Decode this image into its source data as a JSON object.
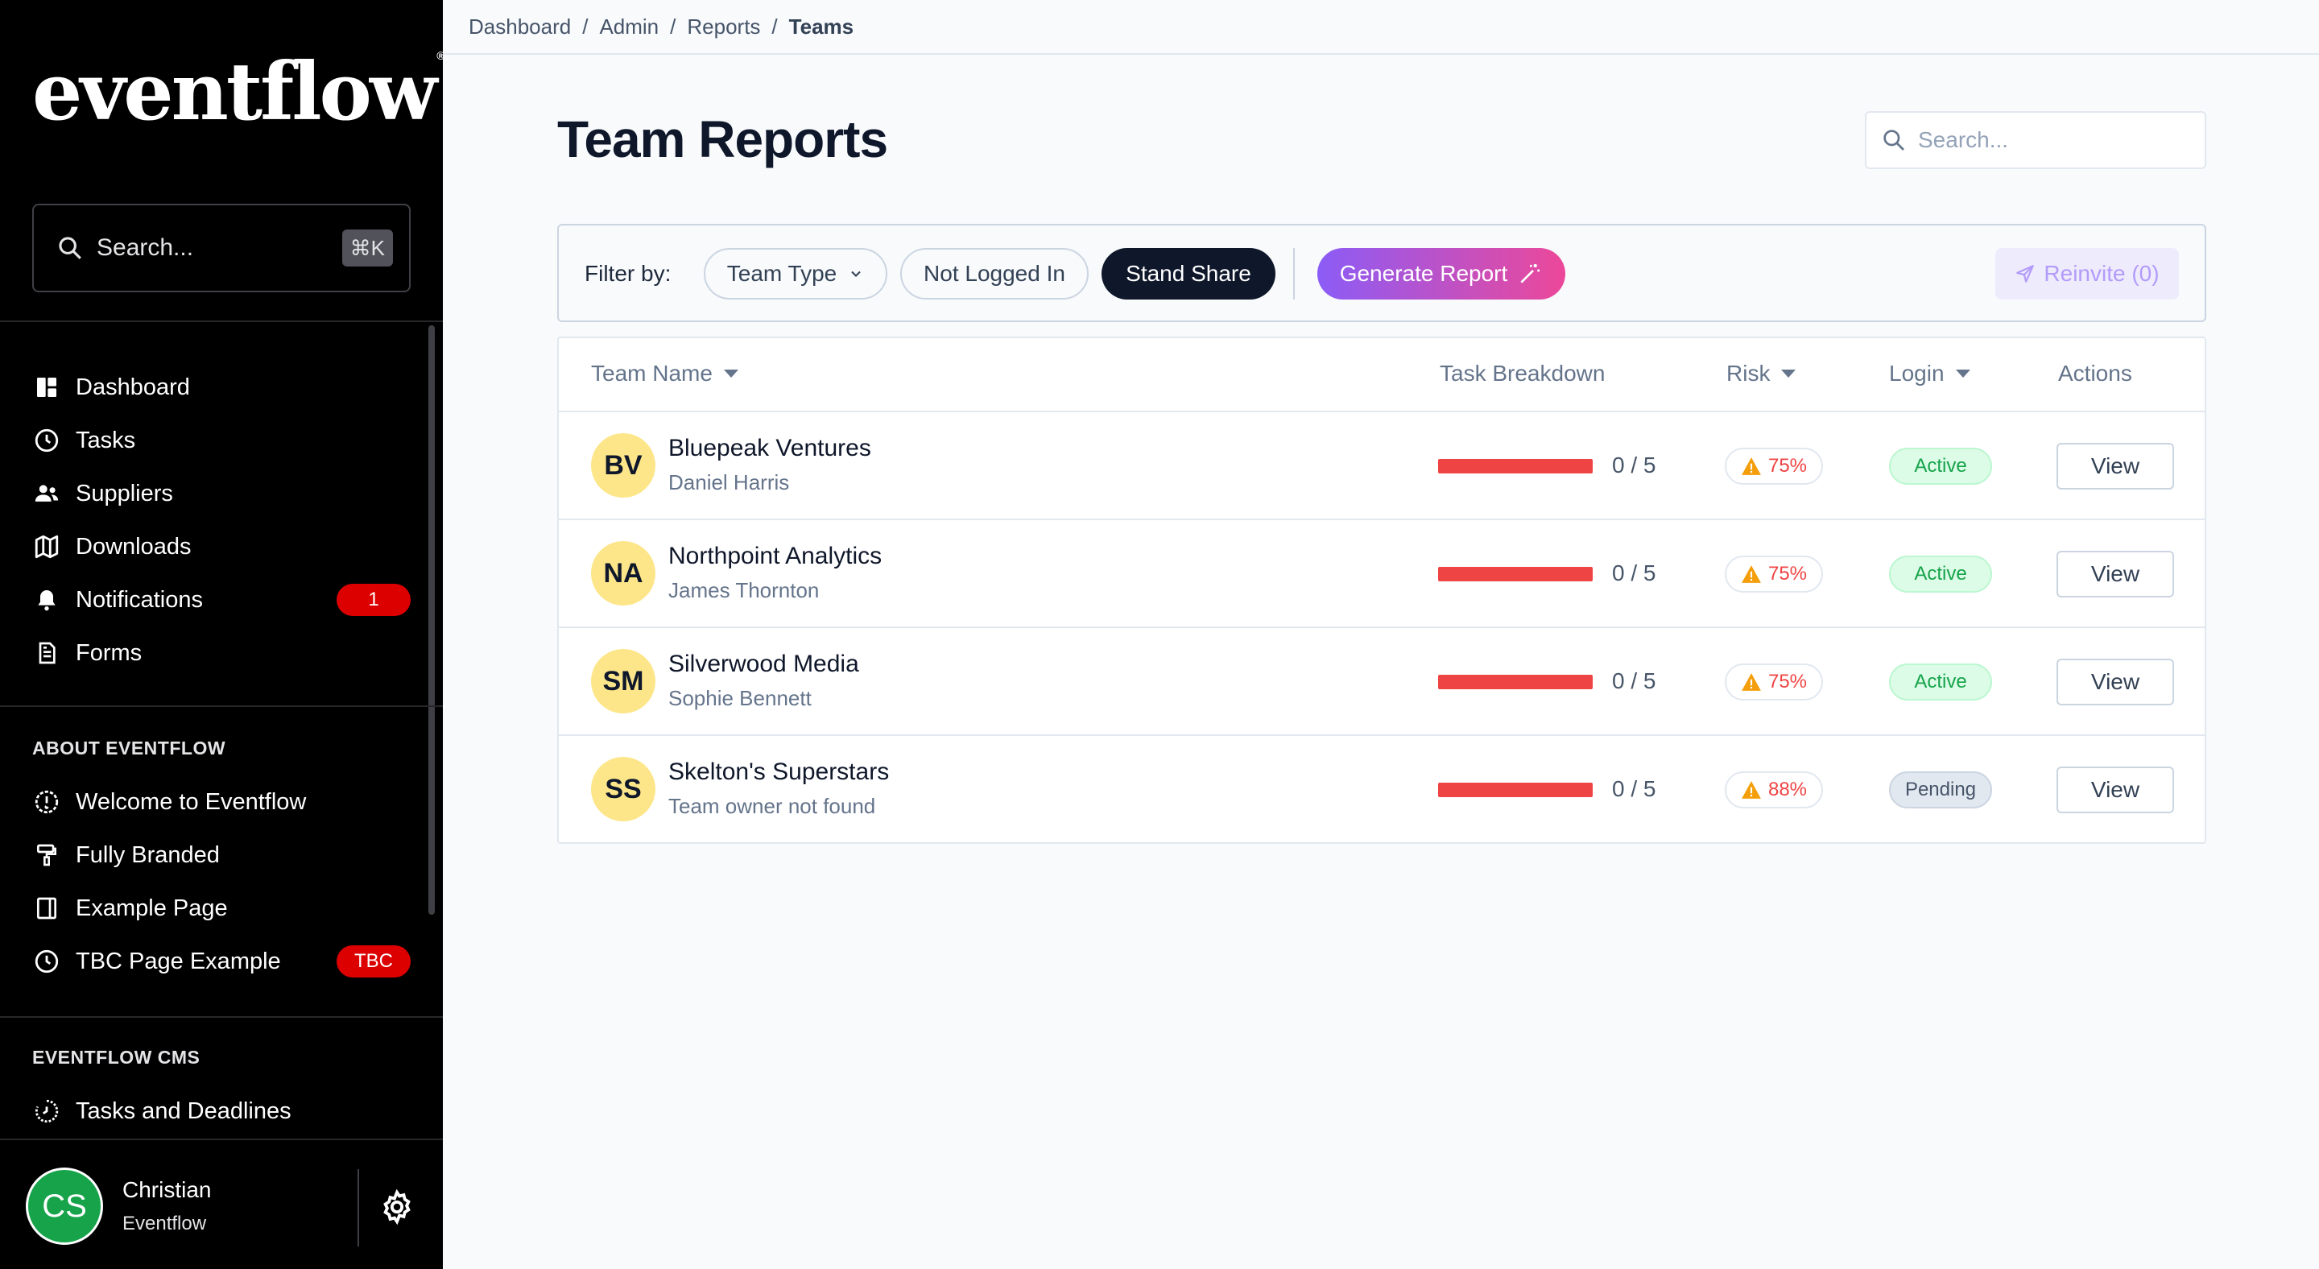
{
  "sidebar": {
    "logo": "eventflow",
    "logo_mark": "®",
    "search": {
      "placeholder": "Search...",
      "shortcut": "⌘K"
    },
    "nav": [
      {
        "label": "Dashboard",
        "icon": "dashboard-icon"
      },
      {
        "label": "Tasks",
        "icon": "clock-icon"
      },
      {
        "label": "Suppliers",
        "icon": "users-icon"
      },
      {
        "label": "Downloads",
        "icon": "map-icon"
      },
      {
        "label": "Notifications",
        "icon": "bell-icon",
        "badge": "1"
      },
      {
        "label": "Forms",
        "icon": "document-icon"
      }
    ],
    "about_title": "ABOUT EVENTFLOW",
    "about": [
      {
        "label": "Welcome to Eventflow",
        "icon": "alert-circle-icon"
      },
      {
        "label": "Fully Branded",
        "icon": "paint-roller-icon"
      },
      {
        "label": "Example Page",
        "icon": "sidebar-layout-icon"
      },
      {
        "label": "TBC Page Example",
        "icon": "clock-icon",
        "badge": "TBC"
      }
    ],
    "cms_title": "EVENTFLOW CMS",
    "cms": [
      {
        "label": "Tasks and Deadlines",
        "icon": "timer-icon"
      }
    ],
    "user": {
      "initials": "CS",
      "name": "Christian",
      "org": "Eventflow"
    }
  },
  "breadcrumb": [
    "Dashboard",
    "Admin",
    "Reports",
    "Teams"
  ],
  "page": {
    "title": "Team Reports",
    "search_placeholder": "Search..."
  },
  "filters": {
    "label": "Filter by:",
    "team_type": "Team Type",
    "not_logged_in": "Not Logged In",
    "stand_share": "Stand Share",
    "generate": "Generate Report",
    "reinvite": "Reinvite (0)"
  },
  "table": {
    "columns": {
      "team_name": "Team Name",
      "task_breakdown": "Task Breakdown",
      "risk": "Risk",
      "login": "Login",
      "actions": "Actions"
    },
    "rows": [
      {
        "initials": "BV",
        "name": "Bluepeak Ventures",
        "owner": "Daniel Harris",
        "done": 0,
        "total": 5,
        "ratio": "0 / 5",
        "risk": "75%",
        "login": "Active",
        "action": "View"
      },
      {
        "initials": "NA",
        "name": "Northpoint Analytics",
        "owner": "James Thornton",
        "done": 0,
        "total": 5,
        "ratio": "0 / 5",
        "risk": "75%",
        "login": "Active",
        "action": "View"
      },
      {
        "initials": "SM",
        "name": "Silverwood Media",
        "owner": "Sophie Bennett",
        "done": 0,
        "total": 5,
        "ratio": "0 / 5",
        "risk": "75%",
        "login": "Active",
        "action": "View"
      },
      {
        "initials": "SS",
        "name": "Skelton's Superstars",
        "owner": "Team owner not found",
        "done": 0,
        "total": 5,
        "ratio": "0 / 5",
        "risk": "88%",
        "login": "Pending",
        "action": "View"
      }
    ]
  },
  "colors": {
    "sidebar_bg": "#000000",
    "accent_gradient_start": "#8b5cf6",
    "accent_gradient_end": "#ec4899",
    "danger": "#ef4444",
    "success": "#16a34a",
    "avatar_yellow": "#fde68a"
  }
}
